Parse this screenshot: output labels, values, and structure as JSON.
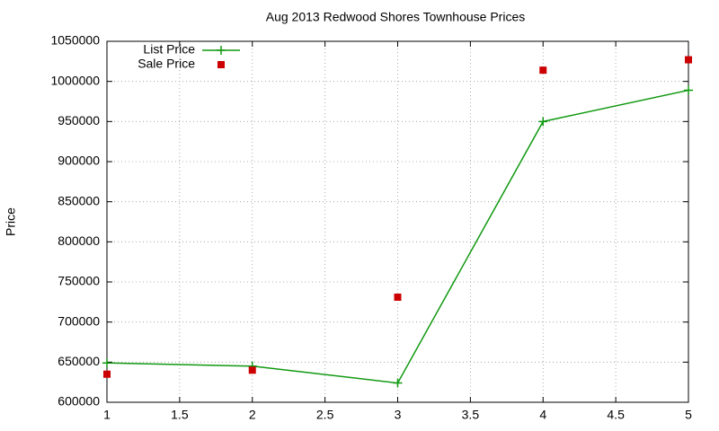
{
  "chart_data": {
    "type": "line",
    "title": "Aug 2013 Redwood Shores Townhouse Prices",
    "y_label": "Price",
    "x": [
      1,
      2,
      3,
      4,
      5
    ],
    "series": [
      {
        "name": "List Price",
        "color": "#119911",
        "style": "linespoints",
        "values": [
          649000,
          645000,
          624000,
          950000,
          989000
        ]
      },
      {
        "name": "Sale Price",
        "color": "#cc0000",
        "style": "points",
        "values": [
          635000,
          640000,
          731000,
          1014000,
          1027000
        ]
      }
    ],
    "xlim": [
      1,
      5
    ],
    "xticks": [
      1,
      1.5,
      2,
      2.5,
      3,
      3.5,
      4,
      4.5,
      5
    ],
    "ylim": [
      600000,
      1050000
    ],
    "yticks": [
      600000,
      650000,
      700000,
      750000,
      800000,
      850000,
      900000,
      950000,
      1000000,
      1050000
    ],
    "grid": true,
    "legend": "top-left"
  }
}
